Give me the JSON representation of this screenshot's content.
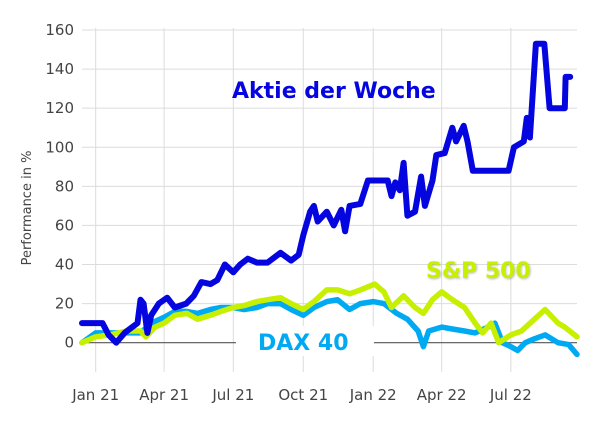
{
  "chart_data": {
    "type": "line",
    "title": "",
    "xlabel": "",
    "ylabel": "Performance in %",
    "xlim": [
      "2020-12-14",
      "2022-09-26"
    ],
    "ylim": [
      -15,
      160
    ],
    "grid": true,
    "yticks": [
      0,
      20,
      40,
      60,
      80,
      100,
      120,
      140,
      160
    ],
    "xticks": [
      {
        "date": "2021-01-01",
        "label": "Jan 21"
      },
      {
        "date": "2021-04-01",
        "label": "Apr 21"
      },
      {
        "date": "2021-07-01",
        "label": "Jul 21"
      },
      {
        "date": "2021-10-01",
        "label": "Oct 21"
      },
      {
        "date": "2022-01-01",
        "label": "Jan 22"
      },
      {
        "date": "2022-04-01",
        "label": "Apr 22"
      },
      {
        "date": "2022-07-01",
        "label": "Jul 22"
      }
    ],
    "series": [
      {
        "name": "DAX 40",
        "color": "#00aaf2",
        "x": [
          "2020-12-14",
          "2021-01-01",
          "2021-02-01",
          "2021-03-01",
          "2021-03-15",
          "2021-04-01",
          "2021-04-15",
          "2021-05-01",
          "2021-05-15",
          "2021-06-01",
          "2021-06-15",
          "2021-07-01",
          "2021-07-15",
          "2021-08-01",
          "2021-08-15",
          "2021-09-01",
          "2021-09-15",
          "2021-10-01",
          "2021-10-15",
          "2021-11-01",
          "2021-11-15",
          "2021-12-01",
          "2021-12-15",
          "2022-01-01",
          "2022-01-15",
          "2022-02-01",
          "2022-02-15",
          "2022-03-01",
          "2022-03-08",
          "2022-03-15",
          "2022-04-01",
          "2022-04-15",
          "2022-05-01",
          "2022-05-15",
          "2022-06-01",
          "2022-06-10",
          "2022-06-20",
          "2022-07-01",
          "2022-07-10",
          "2022-07-20",
          "2022-08-01",
          "2022-08-15",
          "2022-09-01",
          "2022-09-15",
          "2022-09-26"
        ],
        "y": [
          0,
          5,
          5,
          5,
          10,
          13,
          16,
          16,
          15,
          17,
          18,
          18,
          17,
          18,
          20,
          20,
          17,
          14,
          18,
          21,
          22,
          17,
          20,
          21,
          20,
          15,
          12,
          6,
          -2,
          6,
          8,
          7,
          6,
          5,
          8,
          10,
          0,
          -2,
          -4,
          0,
          2,
          4,
          0,
          -1,
          -6
        ]
      },
      {
        "name": "S&P 500",
        "color": "#c6f000",
        "x": [
          "2020-12-14",
          "2021-01-01",
          "2021-01-20",
          "2021-02-10",
          "2021-03-01",
          "2021-03-08",
          "2021-03-20",
          "2021-04-01",
          "2021-04-15",
          "2021-05-01",
          "2021-05-15",
          "2021-06-01",
          "2021-06-15",
          "2021-07-01",
          "2021-07-15",
          "2021-08-01",
          "2021-08-15",
          "2021-09-01",
          "2021-09-15",
          "2021-10-01",
          "2021-10-15",
          "2021-11-01",
          "2021-11-15",
          "2021-12-01",
          "2021-12-15",
          "2022-01-03",
          "2022-01-15",
          "2022-01-25",
          "2022-02-10",
          "2022-02-25",
          "2022-03-08",
          "2022-03-20",
          "2022-04-01",
          "2022-04-15",
          "2022-05-01",
          "2022-05-15",
          "2022-05-25",
          "2022-06-05",
          "2022-06-15",
          "2022-07-01",
          "2022-07-15",
          "2022-08-01",
          "2022-08-15",
          "2022-09-01",
          "2022-09-10",
          "2022-09-26"
        ],
        "y": [
          0,
          3,
          4,
          6,
          6,
          3,
          8,
          10,
          14,
          15,
          12,
          14,
          16,
          18,
          19,
          21,
          22,
          23,
          20,
          17,
          21,
          27,
          27,
          25,
          27,
          30,
          26,
          18,
          24,
          18,
          15,
          22,
          26,
          22,
          18,
          10,
          5,
          10,
          0,
          4,
          6,
          12,
          17,
          10,
          8,
          3
        ]
      },
      {
        "name": "Aktie der Woche",
        "color": "#0505e0",
        "x": [
          "2020-12-14",
          "2021-01-10",
          "2021-01-18",
          "2021-01-28",
          "2021-02-08",
          "2021-02-18",
          "2021-02-25",
          "2021-03-01",
          "2021-03-05",
          "2021-03-10",
          "2021-03-15",
          "2021-03-25",
          "2021-04-05",
          "2021-04-15",
          "2021-04-30",
          "2021-05-10",
          "2021-05-20",
          "2021-06-01",
          "2021-06-10",
          "2021-06-20",
          "2021-07-01",
          "2021-07-10",
          "2021-07-20",
          "2021-08-01",
          "2021-08-15",
          "2021-09-01",
          "2021-09-15",
          "2021-09-25",
          "2021-10-01",
          "2021-10-10",
          "2021-10-15",
          "2021-10-20",
          "2021-11-01",
          "2021-11-10",
          "2021-11-20",
          "2021-11-25",
          "2021-12-01",
          "2021-12-15",
          "2021-12-25",
          "2022-01-10",
          "2022-01-20",
          "2022-01-25",
          "2022-01-30",
          "2022-02-05",
          "2022-02-10",
          "2022-02-15",
          "2022-02-25",
          "2022-03-05",
          "2022-03-10",
          "2022-03-20",
          "2022-03-25",
          "2022-04-05",
          "2022-04-15",
          "2022-04-20",
          "2022-04-30",
          "2022-05-05",
          "2022-05-12",
          "2022-06-28",
          "2022-07-05",
          "2022-07-18",
          "2022-07-22",
          "2022-07-26",
          "2022-08-03",
          "2022-08-14",
          "2022-08-21",
          "2022-09-10",
          "2022-09-11",
          "2022-09-17"
        ],
        "y": [
          10,
          10,
          4,
          0,
          5,
          8,
          10,
          22,
          20,
          5,
          14,
          20,
          23,
          18,
          20,
          24,
          31,
          30,
          32,
          40,
          36,
          40,
          43,
          41,
          41,
          46,
          42,
          45,
          55,
          67,
          70,
          62,
          67,
          60,
          68,
          57,
          70,
          71,
          83,
          83,
          83,
          75,
          82,
          78,
          92,
          65,
          67,
          85,
          70,
          83,
          96,
          97,
          110,
          103,
          111,
          103,
          88,
          88,
          100,
          103,
          115,
          105,
          153,
          153,
          120,
          120,
          136,
          136
        ]
      }
    ]
  }
}
